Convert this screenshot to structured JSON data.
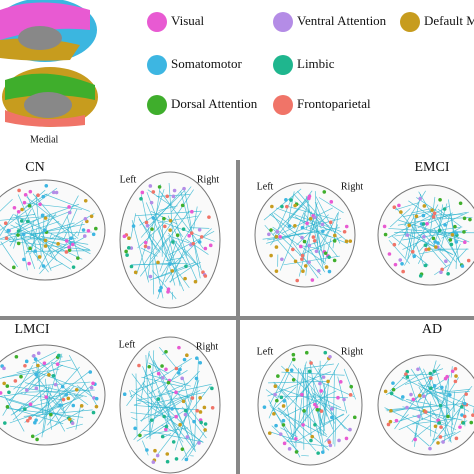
{
  "header": {
    "view_label": "Medial"
  },
  "legend": [
    {
      "label": "Visual",
      "color": "#e85ad2"
    },
    {
      "label": "Ventral Attention",
      "color": "#b48ce6"
    },
    {
      "label": "Default M",
      "color": "#c79c1e"
    },
    {
      "label": "Somatomotor",
      "color": "#3db6e2"
    },
    {
      "label": "Limbic",
      "color": "#1fb68e"
    },
    {
      "label": "Dorsal Attention",
      "color": "#3fae2c"
    },
    {
      "label": "Frontoparietal",
      "color": "#f07468"
    }
  ],
  "panels": [
    {
      "label": "CN",
      "left": "Left",
      "right": "Right"
    },
    {
      "label": "EMCI",
      "left": "Left",
      "right": "Right"
    },
    {
      "label": "LMCI",
      "left": "Left",
      "right": "Right"
    },
    {
      "label": "AD",
      "left": "Left",
      "right": "Right"
    }
  ]
}
